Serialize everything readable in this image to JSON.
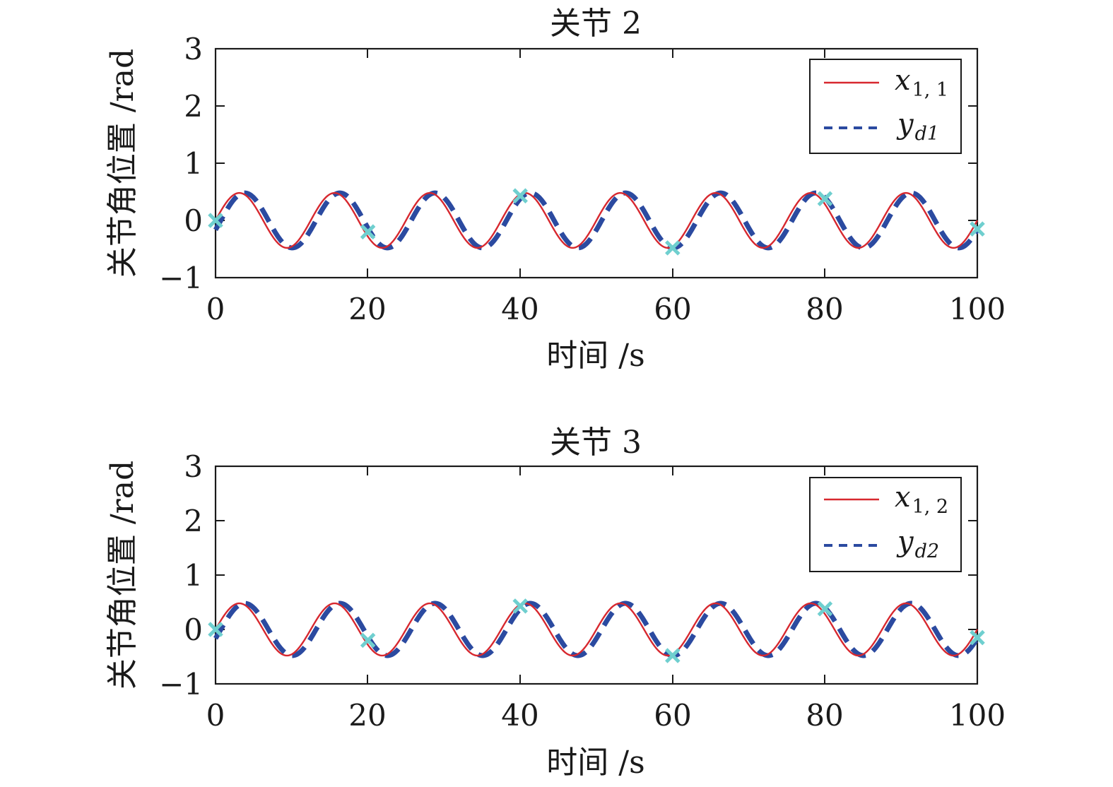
{
  "chart_data": [
    {
      "type": "line",
      "title": "关节 2",
      "xlabel": "时间 /s",
      "ylabel": "关节角位置 /rad",
      "xlim": [
        0,
        100
      ],
      "ylim": [
        -1,
        3
      ],
      "xticks": [
        "0",
        "20",
        "40",
        "60",
        "80",
        "100"
      ],
      "yticks": [
        "−1",
        "0",
        "1",
        "2",
        "3"
      ],
      "grid": false,
      "legend_position": "top-right",
      "series": [
        {
          "legend_main": "x",
          "legend_sub": "1, 1",
          "style": "solid",
          "color": "#d7282f",
          "model": "sine",
          "amplitude": 0.48,
          "period": 12.5,
          "phase_deg": 0
        },
        {
          "legend_main": "y",
          "legend_sub": "d1",
          "style": "dashed",
          "color": "#2b4aa0",
          "model": "sine",
          "amplitude": 0.48,
          "period": 12.5,
          "phase_deg": -20
        }
      ],
      "markers": {
        "symbol": "x",
        "color": "#6fcfcf",
        "points": [
          {
            "x": 0,
            "y": 0.0
          },
          {
            "x": 20,
            "y": -0.2
          },
          {
            "x": 40,
            "y": 0.43
          },
          {
            "x": 60,
            "y": -0.48
          },
          {
            "x": 80,
            "y": 0.38
          },
          {
            "x": 100,
            "y": -0.15
          }
        ]
      }
    },
    {
      "type": "line",
      "title": "关节 3",
      "xlabel": "时间 /s",
      "ylabel": "关节角位置 /rad",
      "xlim": [
        0,
        100
      ],
      "ylim": [
        -1,
        3
      ],
      "xticks": [
        "0",
        "20",
        "40",
        "60",
        "80",
        "100"
      ],
      "yticks": [
        "−1",
        "0",
        "1",
        "2",
        "3"
      ],
      "grid": false,
      "legend_position": "top-right",
      "series": [
        {
          "legend_main": "x",
          "legend_sub": "1, 2",
          "style": "solid",
          "color": "#d7282f",
          "model": "sine",
          "amplitude": 0.48,
          "period": 12.5,
          "phase_deg": 0
        },
        {
          "legend_main": "y",
          "legend_sub": "d2",
          "style": "dashed",
          "color": "#2b4aa0",
          "model": "sine",
          "amplitude": 0.48,
          "period": 12.5,
          "phase_deg": -20
        }
      ],
      "markers": {
        "symbol": "x",
        "color": "#6fcfcf",
        "points": [
          {
            "x": 0,
            "y": 0.0
          },
          {
            "x": 20,
            "y": -0.2
          },
          {
            "x": 40,
            "y": 0.43
          },
          {
            "x": 60,
            "y": -0.48
          },
          {
            "x": 80,
            "y": 0.38
          },
          {
            "x": 100,
            "y": -0.15
          }
        ]
      }
    }
  ]
}
